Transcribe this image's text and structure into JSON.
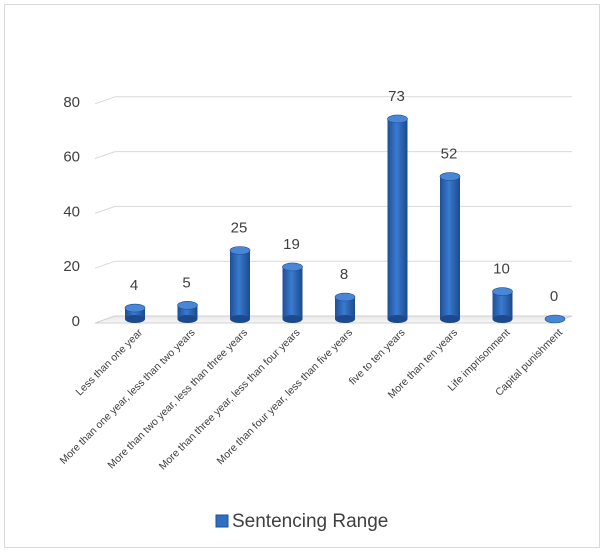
{
  "chart_data": {
    "type": "bar",
    "categories": [
      "Less than one year",
      "More than one year, less than two years",
      "More than two year, less than three years",
      "More than three year, less than four years",
      "More than four year, less than five years",
      "five to ten years",
      "More than ten years",
      "Life imprisonment",
      "Capital punishment"
    ],
    "series": [
      {
        "name": "Sentencing Range",
        "values": [
          4,
          5,
          25,
          19,
          8,
          73,
          52,
          10,
          0
        ]
      }
    ],
    "yticks": [
      "0",
      "20",
      "40",
      "60",
      "80"
    ],
    "ylim": [
      0,
      80
    ],
    "grid": true,
    "legend": "bottom",
    "colors": {
      "bar": "#2e6fc4",
      "bar_dark": "#1d4f94",
      "bar_top": "#4a86d6",
      "grid": "#d9d9d9",
      "text": "#404040"
    }
  }
}
